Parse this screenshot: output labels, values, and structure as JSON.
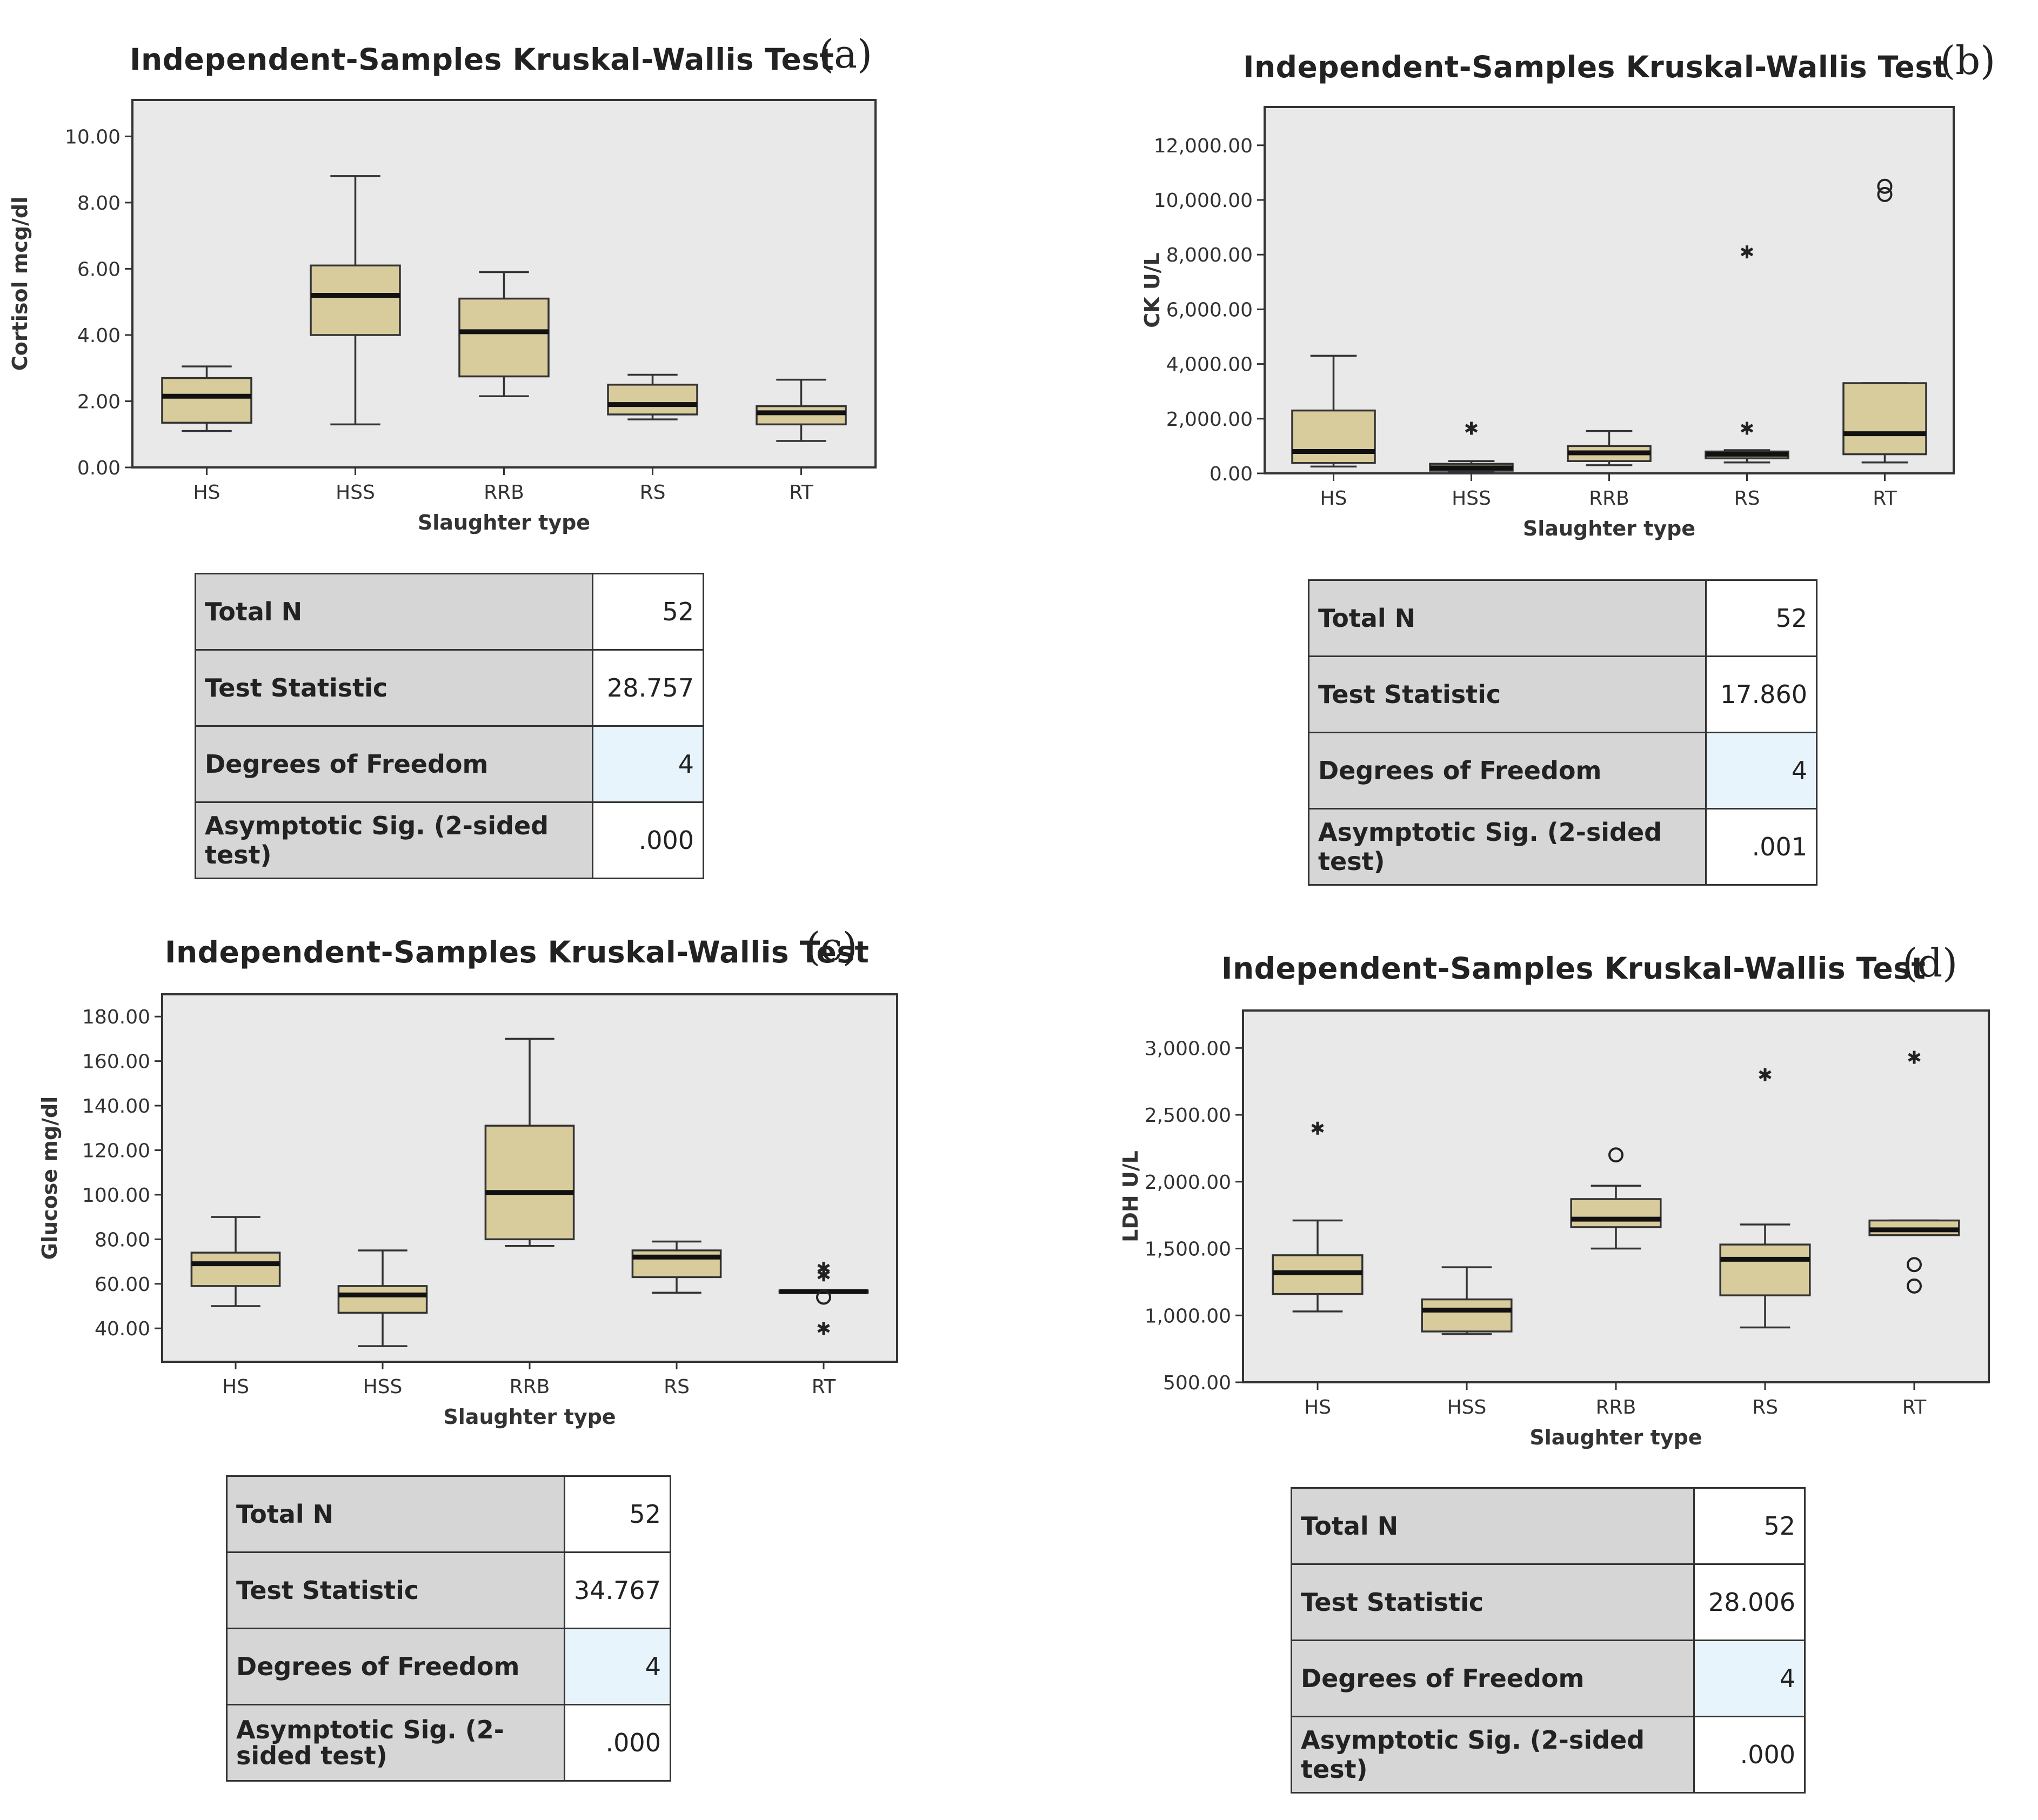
{
  "colors": {
    "plot_bg": "#e9e9e9",
    "box_fill": "#d9cc9c",
    "stats_label_bg": "#d6d6d6",
    "stats_highlight_bg": "#e8f4fc"
  },
  "panels": [
    {
      "label": "(a)",
      "title": "Independent-Samples Kruskal-Wallis Test",
      "stats": {
        "total_n_label": "Total N",
        "total_n": "52",
        "test_statistic_label": "Test Statistic",
        "test_statistic": "28.757",
        "df_label": "Degrees of Freedom",
        "df": "4",
        "sig_label": "Asymptotic Sig. (2-sided test)",
        "sig": ".000"
      }
    },
    {
      "label": "(b)",
      "title": "Independent-Samples Kruskal-Wallis Test",
      "stats": {
        "total_n_label": "Total N",
        "total_n": "52",
        "test_statistic_label": "Test Statistic",
        "test_statistic": "17.860",
        "df_label": "Degrees of Freedom",
        "df": "4",
        "sig_label": "Asymptotic Sig. (2-sided test)",
        "sig": ".001"
      }
    },
    {
      "label": "(c)",
      "title": "Independent-Samples Kruskal-Wallis Test",
      "stats": {
        "total_n_label": "Total N",
        "total_n": "52",
        "test_statistic_label": "Test Statistic",
        "test_statistic": "34.767",
        "df_label": "Degrees of Freedom",
        "df": "4",
        "sig_label": "Asymptotic Sig. (2-sided test)",
        "sig": ".000"
      }
    },
    {
      "label": "(d)",
      "title": "Independent-Samples Kruskal-Wallis Test",
      "stats": {
        "total_n_label": "Total N",
        "total_n": "52",
        "test_statistic_label": "Test Statistic",
        "test_statistic": "28.006",
        "df_label": "Degrees of Freedom",
        "df": "4",
        "sig_label": "Asymptotic Sig. (2-sided test)",
        "sig": ".000"
      }
    }
  ],
  "chart_data": [
    {
      "type": "boxplot",
      "title": "Independent-Samples Kruskal-Wallis Test",
      "xlabel": "Slaughter type",
      "ylabel": "Cortisol mcg/dl",
      "categories": [
        "HS",
        "HSS",
        "RRB",
        "RS",
        "RT"
      ],
      "ylim": [
        0,
        11.1
      ],
      "yticks": [
        0,
        2,
        4,
        6,
        8,
        10
      ],
      "ytick_labels": [
        "0.00",
        "2.00",
        "4.00",
        "6.00",
        "8.00",
        "10.00"
      ],
      "boxes": [
        {
          "min": 1.1,
          "q1": 1.35,
          "median": 2.15,
          "q3": 2.7,
          "max": 3.05
        },
        {
          "min": 1.3,
          "q1": 4.0,
          "median": 5.2,
          "q3": 6.1,
          "max": 8.8
        },
        {
          "min": 2.15,
          "q1": 2.75,
          "median": 4.1,
          "q3": 5.1,
          "max": 5.9
        },
        {
          "min": 1.45,
          "q1": 1.6,
          "median": 1.9,
          "q3": 2.5,
          "max": 2.8
        },
        {
          "min": 0.8,
          "q1": 1.3,
          "median": 1.65,
          "q3": 1.85,
          "max": 2.65
        }
      ],
      "outliers": []
    },
    {
      "type": "boxplot",
      "title": "Independent-Samples Kruskal-Wallis Test",
      "xlabel": "Slaughter type",
      "ylabel": "CK U/L",
      "categories": [
        "HS",
        "HSS",
        "RRB",
        "RS",
        "RT"
      ],
      "ylim": [
        0,
        13400
      ],
      "yticks": [
        0,
        2000,
        4000,
        6000,
        8000,
        10000,
        12000
      ],
      "ytick_labels": [
        "0.00",
        "2,000.00",
        "4,000.00",
        "6,000.00",
        "8,000.00",
        "10,000.00",
        "12,000.00"
      ],
      "boxes": [
        {
          "min": 250,
          "q1": 380,
          "median": 800,
          "q3": 2300,
          "max": 4300
        },
        {
          "min": 50,
          "q1": 100,
          "median": 200,
          "q3": 350,
          "max": 450
        },
        {
          "min": 300,
          "q1": 450,
          "median": 750,
          "q3": 1000,
          "max": 1550
        },
        {
          "min": 400,
          "q1": 550,
          "median": 700,
          "q3": 800,
          "max": 850
        },
        {
          "min": 400,
          "q1": 700,
          "median": 1450,
          "q3": 3300,
          "max": 3300
        }
      ],
      "outliers": [
        {
          "category": "HSS",
          "value": 1650,
          "marker": "star"
        },
        {
          "category": "RS",
          "value": 8100,
          "marker": "star"
        },
        {
          "category": "RS",
          "value": 1650,
          "marker": "star"
        },
        {
          "category": "RT",
          "value": 10500,
          "marker": "circle"
        },
        {
          "category": "RT",
          "value": 10200,
          "marker": "circle"
        }
      ]
    },
    {
      "type": "boxplot",
      "title": "Independent-Samples Kruskal-Wallis Test",
      "xlabel": "Slaughter type",
      "ylabel": "Glucose mg/dl",
      "categories": [
        "HS",
        "HSS",
        "RRB",
        "RS",
        "RT"
      ],
      "ylim": [
        25,
        190
      ],
      "yticks": [
        40,
        60,
        80,
        100,
        120,
        140,
        160,
        180
      ],
      "ytick_labels": [
        "40.00",
        "60.00",
        "80.00",
        "100.00",
        "120.00",
        "140.00",
        "160.00",
        "180.00"
      ],
      "boxes": [
        {
          "min": 50,
          "q1": 59,
          "median": 69,
          "q3": 74,
          "max": 90
        },
        {
          "min": 32,
          "q1": 47,
          "median": 55,
          "q3": 59,
          "max": 75
        },
        {
          "min": 77,
          "q1": 80,
          "median": 101,
          "q3": 131,
          "max": 170
        },
        {
          "min": 56,
          "q1": 63,
          "median": 72,
          "q3": 75,
          "max": 79
        },
        {
          "min": 56,
          "q1": 56,
          "median": 56.5,
          "q3": 57,
          "max": 57
        }
      ],
      "outliers": [
        {
          "category": "RT",
          "value": 67,
          "marker": "star"
        },
        {
          "category": "RT",
          "value": 64,
          "marker": "star"
        },
        {
          "category": "RT",
          "value": 54,
          "marker": "circle"
        },
        {
          "category": "RT",
          "value": 40,
          "marker": "star"
        }
      ]
    },
    {
      "type": "boxplot",
      "title": "Independent-Samples Kruskal-Wallis Test",
      "xlabel": "Slaughter type",
      "ylabel": "LDH U/L",
      "categories": [
        "HS",
        "HSS",
        "RRB",
        "RS",
        "RT"
      ],
      "ylim": [
        500,
        3280
      ],
      "yticks": [
        500,
        1000,
        1500,
        2000,
        2500,
        3000
      ],
      "ytick_labels": [
        "500.00",
        "1,000.00",
        "1,500.00",
        "2,000.00",
        "2,500.00",
        "3,000.00"
      ],
      "boxes": [
        {
          "min": 1030,
          "q1": 1160,
          "median": 1320,
          "q3": 1450,
          "max": 1710
        },
        {
          "min": 860,
          "q1": 880,
          "median": 1040,
          "q3": 1120,
          "max": 1360
        },
        {
          "min": 1500,
          "q1": 1660,
          "median": 1720,
          "q3": 1870,
          "max": 1970
        },
        {
          "min": 910,
          "q1": 1150,
          "median": 1420,
          "q3": 1530,
          "max": 1680
        },
        {
          "min": 1600,
          "q1": 1600,
          "median": 1640,
          "q3": 1710,
          "max": 1710
        }
      ],
      "outliers": [
        {
          "category": "HS",
          "value": 2400,
          "marker": "star"
        },
        {
          "category": "RRB",
          "value": 2200,
          "marker": "circle"
        },
        {
          "category": "RS",
          "value": 2800,
          "marker": "star"
        },
        {
          "category": "RT",
          "value": 2930,
          "marker": "star"
        },
        {
          "category": "RT",
          "value": 1380,
          "marker": "circle"
        },
        {
          "category": "RT",
          "value": 1220,
          "marker": "circle"
        }
      ]
    }
  ]
}
